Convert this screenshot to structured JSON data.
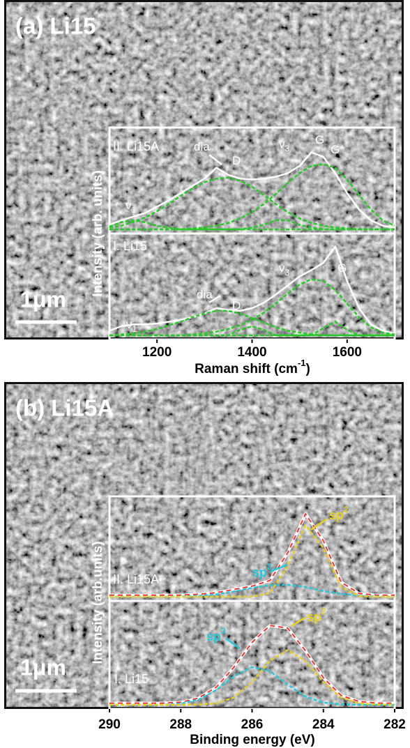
{
  "chart_data": [
    {
      "type": "line",
      "title": "(a) Li15",
      "scale_bar": "1μm",
      "y_label": "Intensity (arb. units)",
      "x_label": {
        "text": "Raman shift (cm",
        "sup": "-1",
        "after": ")"
      },
      "xlim": [
        1100,
        1700
      ],
      "xticks": [
        1200,
        1400,
        1600
      ],
      "x": [
        1100,
        1125,
        1150,
        1175,
        1200,
        1225,
        1250,
        1275,
        1300,
        1325,
        1350,
        1375,
        1400,
        1425,
        1450,
        1475,
        1500,
        1525,
        1550,
        1575,
        1600,
        1625,
        1650,
        1675,
        1700
      ],
      "subplots": [
        {
          "label": "II. Li15A",
          "ylim": [
            0,
            1
          ],
          "series": [
            {
              "color": "#ffffff",
              "dash": false,
              "values": [
                0.05,
                0.1,
                0.14,
                0.18,
                0.25,
                0.32,
                0.4,
                0.48,
                0.56,
                0.68,
                0.6,
                0.56,
                0.55,
                0.56,
                0.58,
                0.62,
                0.7,
                0.85,
                0.8,
                0.62,
                0.4,
                0.22,
                0.1,
                0.04,
                0.02
              ]
            },
            {
              "color": "#22cc22",
              "dash": true,
              "values": [
                0.02,
                0.04,
                0.08,
                0.13,
                0.2,
                0.28,
                0.37,
                0.45,
                0.52,
                0.56,
                0.57,
                0.54,
                0.47,
                0.38,
                0.28,
                0.19,
                0.12,
                0.07,
                0.04,
                0.02,
                0.01,
                0,
                0,
                0,
                0
              ]
            },
            {
              "color": "#22cc22",
              "dash": true,
              "values": [
                0,
                0,
                0,
                0,
                0,
                0,
                0,
                0.01,
                0.02,
                0.04,
                0.07,
                0.12,
                0.19,
                0.28,
                0.39,
                0.51,
                0.62,
                0.7,
                0.72,
                0.68,
                0.55,
                0.38,
                0.22,
                0.1,
                0.04
              ]
            },
            {
              "color": "#22cc22",
              "dash": true,
              "values": [
                0.03,
                0.08,
                0.1,
                0.08,
                0.04,
                0.02,
                0,
                0,
                0,
                0,
                0,
                0,
                0,
                0,
                0,
                0,
                0,
                0,
                0,
                0,
                0,
                0,
                0,
                0,
                0
              ]
            },
            {
              "color": "#22cc22",
              "dash": true,
              "values": [
                0,
                0,
                0,
                0,
                0,
                0,
                0,
                0,
                0,
                0,
                0,
                0,
                0.02,
                0.05,
                0.1,
                0.1,
                0.05,
                0.02,
                0,
                0,
                0,
                0,
                0,
                0,
                0
              ]
            }
          ],
          "annotations": [
            {
              "text": "dia"
            },
            {
              "text": "D"
            },
            {
              "text": "ν",
              "sub": "3"
            },
            {
              "text": "G"
            },
            {
              "text": "G*"
            },
            {
              "text": "ν",
              "sub": "1"
            }
          ]
        },
        {
          "label": "I. Li15",
          "ylim": [
            0,
            1
          ],
          "series": [
            {
              "color": "#ffffff",
              "dash": false,
              "values": [
                0.05,
                0.1,
                0.12,
                0.12,
                0.13,
                0.15,
                0.17,
                0.2,
                0.24,
                0.3,
                0.28,
                0.27,
                0.3,
                0.36,
                0.45,
                0.55,
                0.65,
                0.72,
                0.8,
                0.98,
                0.6,
                0.3,
                0.12,
                0.05,
                0.02
              ]
            },
            {
              "color": "#22cc22",
              "dash": true,
              "values": [
                0,
                0.01,
                0.02,
                0.04,
                0.07,
                0.11,
                0.15,
                0.2,
                0.24,
                0.27,
                0.27,
                0.24,
                0.19,
                0.14,
                0.09,
                0.05,
                0.03,
                0.01,
                0,
                0,
                0,
                0,
                0,
                0,
                0
              ]
            },
            {
              "color": "#22cc22",
              "dash": true,
              "values": [
                0,
                0,
                0,
                0,
                0,
                0,
                0,
                0.01,
                0.02,
                0.04,
                0.07,
                0.11,
                0.17,
                0.25,
                0.35,
                0.46,
                0.56,
                0.62,
                0.6,
                0.5,
                0.35,
                0.2,
                0.09,
                0.03,
                0.01
              ]
            },
            {
              "color": "#22cc22",
              "dash": true,
              "values": [
                0,
                0,
                0,
                0,
                0,
                0,
                0,
                0,
                0,
                0,
                0,
                0,
                0,
                0,
                0,
                0,
                0,
                0,
                0.08,
                0.15,
                0.06,
                0,
                0,
                0,
                0
              ]
            },
            {
              "color": "#22cc22",
              "dash": true,
              "values": [
                0,
                0,
                0,
                0,
                0,
                0,
                0,
                0,
                0,
                0,
                0,
                0.06,
                0.1,
                0.06,
                0,
                0,
                0,
                0,
                0,
                0,
                0,
                0,
                0,
                0,
                0
              ]
            }
          ],
          "annotations": [
            {
              "text": "dia"
            },
            {
              "text": "D"
            },
            {
              "text": "ν",
              "sub": "3"
            },
            {
              "text": "G"
            },
            {
              "text": "ν",
              "sub": "1"
            }
          ]
        }
      ]
    },
    {
      "type": "line",
      "title": "(b) Li15A",
      "scale_bar": "1μm",
      "y_label": "Intensity (arb.units)",
      "x_label": {
        "text": "Binding energy (eV)"
      },
      "xlim": [
        290,
        282
      ],
      "xticks": [
        290,
        288,
        286,
        284,
        282
      ],
      "x": [
        290,
        289.5,
        289,
        288.5,
        288,
        287.5,
        287,
        286.5,
        286,
        285.5,
        285,
        284.5,
        284,
        283.5,
        283,
        282.5,
        282
      ],
      "subplots": [
        {
          "label": "II. Li15A",
          "ylim": [
            0,
            1.1
          ],
          "series": [
            {
              "color": "#ffffff",
              "dash": false,
              "overlay_color": "#ee3333",
              "values": [
                0.02,
                0.02,
                0.02,
                0.02,
                0.02,
                0.03,
                0.05,
                0.09,
                0.13,
                0.2,
                0.54,
                1.02,
                0.69,
                0.18,
                0.04,
                0.02,
                0.02
              ]
            },
            {
              "color": "#22c8dc",
              "dash": true,
              "values": [
                0,
                0,
                0,
                0.001,
                0.003,
                0.011,
                0.03,
                0.065,
                0.11,
                0.14,
                0.147,
                0.12,
                0.07,
                0.035,
                0.013,
                0.004,
                0.001
              ]
            },
            {
              "color": "#e8d020",
              "dash": true,
              "values": [
                0,
                0,
                0,
                0,
                0,
                0,
                0,
                0,
                0.002,
                0.045,
                0.37,
                0.88,
                0.6,
                0.12,
                0.008,
                0,
                0
              ]
            }
          ],
          "annotations": [
            {
              "text": "sp",
              "sup": "3",
              "color": "#22c8dc"
            },
            {
              "text": "sp",
              "sup": "2",
              "color": "#e8d020"
            }
          ]
        },
        {
          "label": "I. Li15",
          "ylim": [
            0,
            1.1
          ],
          "series": [
            {
              "color": "#ffffff",
              "dash": false,
              "overlay_color": "#ee3333",
              "values": [
                0.02,
                0.02,
                0.02,
                0.02,
                0.03,
                0.08,
                0.21,
                0.45,
                0.74,
                0.94,
                0.91,
                0.64,
                0.32,
                0.11,
                0.04,
                0.02,
                0.02
              ]
            },
            {
              "color": "#22c8dc",
              "dash": true,
              "values": [
                0,
                0,
                0,
                0.002,
                0.014,
                0.061,
                0.175,
                0.34,
                0.447,
                0.4,
                0.24,
                0.097,
                0.027,
                0.005,
                0.001,
                0,
                0
              ]
            },
            {
              "color": "#e8d020",
              "dash": true,
              "values": [
                0,
                0,
                0,
                0,
                0,
                0.003,
                0.018,
                0.088,
                0.27,
                0.52,
                0.65,
                0.52,
                0.27,
                0.088,
                0.018,
                0.003,
                0
              ]
            }
          ],
          "annotations": [
            {
              "text": "sp",
              "sup": "3",
              "color": "#22c8dc"
            },
            {
              "text": "sp",
              "sup": "2",
              "color": "#e8d020"
            }
          ]
        }
      ]
    }
  ]
}
